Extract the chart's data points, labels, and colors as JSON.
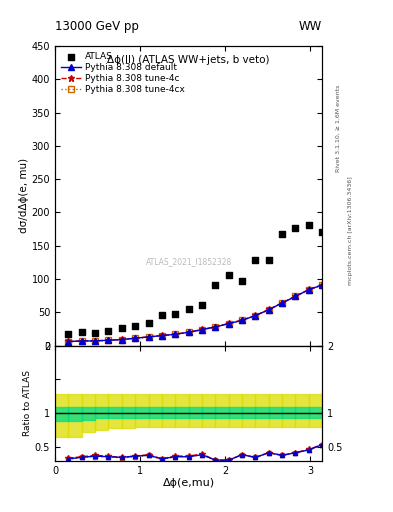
{
  "title_top": "13000 GeV pp",
  "title_right": "WW",
  "subplot_title": "Δϕ(ll) (ATLAS WW+jets, b veto)",
  "xlabel": "Δϕ(e,mu)",
  "ylabel_main": "dσ/dΔϕ(e, mu)",
  "ylabel_ratio": "Ratio to ATLAS",
  "right_label_top": "Rivet 3.1.10, ≥ 1.6M events",
  "right_label_bottom": "mcplots.cern.ch [arXiv:1306.3436]",
  "watermark": "ATLAS_2021_I1852328",
  "atlas_x": [
    0.157,
    0.314,
    0.471,
    0.628,
    0.785,
    0.942,
    1.099,
    1.256,
    1.413,
    1.571,
    1.728,
    1.885,
    2.042,
    2.199,
    2.356,
    2.513,
    2.67,
    2.827,
    2.984,
    3.14
  ],
  "atlas_y": [
    18,
    20,
    19,
    22,
    26,
    30,
    34,
    46,
    47,
    55,
    61,
    91,
    106,
    97,
    128,
    128,
    168,
    176,
    181,
    170
  ],
  "py_x": [
    0.157,
    0.314,
    0.471,
    0.628,
    0.785,
    0.942,
    1.099,
    1.256,
    1.413,
    1.571,
    1.728,
    1.885,
    2.042,
    2.199,
    2.356,
    2.513,
    2.67,
    2.827,
    2.984,
    3.14
  ],
  "py_default_y": [
    6,
    7,
    7,
    8,
    9,
    11,
    13,
    15,
    17,
    20,
    24,
    28,
    33,
    38,
    45,
    54,
    64,
    74,
    84,
    91
  ],
  "py_tune4c_y": [
    6.2,
    7.1,
    7.2,
    8.2,
    9.2,
    11.2,
    13.2,
    15.2,
    17.2,
    20.2,
    24.2,
    28.3,
    33.3,
    38.3,
    45.3,
    54.3,
    64.3,
    74.3,
    84.3,
    91.3
  ],
  "py_tune4cx_y": [
    5.8,
    6.9,
    6.9,
    7.9,
    8.9,
    10.9,
    12.9,
    14.9,
    16.9,
    19.9,
    23.9,
    27.9,
    32.9,
    37.9,
    44.9,
    53.9,
    63.9,
    73.9,
    83.9,
    90.9
  ],
  "ratio_py_default": [
    0.33,
    0.35,
    0.37,
    0.36,
    0.35,
    0.37,
    0.38,
    0.33,
    0.36,
    0.36,
    0.39,
    0.31,
    0.31,
    0.39,
    0.35,
    0.42,
    0.38,
    0.42,
    0.46,
    0.54
  ],
  "ratio_py_tune4c": [
    0.34,
    0.36,
    0.38,
    0.37,
    0.35,
    0.37,
    0.39,
    0.33,
    0.37,
    0.37,
    0.4,
    0.31,
    0.31,
    0.39,
    0.35,
    0.42,
    0.38,
    0.42,
    0.47,
    0.54
  ],
  "ratio_py_tune4cx": [
    0.32,
    0.35,
    0.36,
    0.36,
    0.34,
    0.36,
    0.38,
    0.32,
    0.36,
    0.36,
    0.39,
    0.31,
    0.31,
    0.39,
    0.35,
    0.42,
    0.38,
    0.42,
    0.46,
    0.53
  ],
  "band_x_edges": [
    0.0,
    0.157,
    0.314,
    0.471,
    0.628,
    0.785,
    0.942,
    1.099,
    1.256,
    1.413,
    1.571,
    1.728,
    1.885,
    2.042,
    2.199,
    2.356,
    2.513,
    2.67,
    2.827,
    2.984,
    3.14159
  ],
  "green_band_lo": [
    0.88,
    0.88,
    0.9,
    0.93,
    0.93,
    0.93,
    0.93,
    0.93,
    0.93,
    0.93,
    0.93,
    0.93,
    0.93,
    0.93,
    0.93,
    0.93,
    0.93,
    0.93,
    0.93,
    0.93
  ],
  "green_band_hi": [
    1.1,
    1.1,
    1.1,
    1.1,
    1.1,
    1.1,
    1.1,
    1.1,
    1.1,
    1.1,
    1.1,
    1.1,
    1.1,
    1.1,
    1.1,
    1.1,
    1.1,
    1.1,
    1.1,
    1.1
  ],
  "yellow_band_lo": [
    0.65,
    0.65,
    0.72,
    0.76,
    0.78,
    0.78,
    0.8,
    0.8,
    0.8,
    0.8,
    0.8,
    0.8,
    0.8,
    0.8,
    0.8,
    0.8,
    0.8,
    0.8,
    0.8,
    0.8
  ],
  "yellow_band_hi": [
    1.28,
    1.28,
    1.28,
    1.28,
    1.28,
    1.28,
    1.28,
    1.28,
    1.28,
    1.28,
    1.28,
    1.28,
    1.28,
    1.28,
    1.28,
    1.28,
    1.28,
    1.28,
    1.28,
    1.28
  ],
  "ylim_main": [
    0,
    450
  ],
  "ylim_ratio": [
    0.3,
    2.0
  ],
  "xlim": [
    0.0,
    3.14159
  ],
  "color_default": "#0000cc",
  "color_tune4c": "#cc0000",
  "color_tune4cx": "#cc6600",
  "color_atlas": "#000000",
  "color_green": "#00dd88",
  "color_yellow": "#dddd00",
  "legend_atlas": "ATLAS",
  "legend_default": "Pythia 8.308 default",
  "legend_tune4c": "Pythia 8.308 tune-4c",
  "legend_tune4cx": "Pythia 8.308 tune-4cx"
}
